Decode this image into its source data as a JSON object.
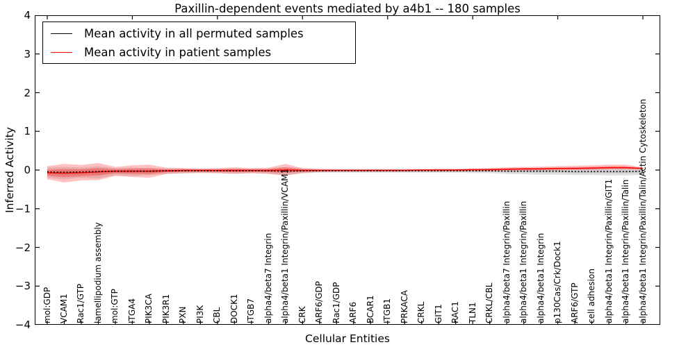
{
  "title": "Paxillin-dependent events mediated by a4b1 -- 180 samples",
  "legend": {
    "position": "upper left",
    "entries": [
      {
        "label": "Mean activity in all permuted samples",
        "color": "#000000"
      },
      {
        "label": "Mean activity in patient samples",
        "color": "#ff0000"
      }
    ]
  },
  "chart_data": {
    "type": "line",
    "title": "Paxillin-dependent events mediated by a4b1 -- 180 samples",
    "xlabel": "Cellular Entities",
    "ylabel": "Inferred Activity",
    "ylim": [
      -4,
      4
    ],
    "yticks": [
      "4",
      "3",
      "2",
      "1",
      "0",
      "−1",
      "−2",
      "−3",
      "−4"
    ],
    "ytick_values": [
      4,
      3,
      2,
      1,
      0,
      -1,
      -2,
      -3,
      -4
    ],
    "grid": false,
    "legend_position": "upper left",
    "categories": [
      "mol:GDP",
      "VCAM1",
      "Rac1/GTP",
      "lamellipodium assembly",
      "mol:GTP",
      "ITGA4",
      "PIK3CA",
      "PIK3R1",
      "PXN",
      "PI3K",
      "CBL",
      "DOCK1",
      "ITGB7",
      "alpha4/beta7 Integrin",
      "alpha4/beta1 Integrin/Paxillin/VCAM1",
      "CRK",
      "ARF6/GDP",
      "Rac1/GDP",
      "ARF6",
      "BCAR1",
      "ITGB1",
      "PRKACA",
      "CRKL",
      "GIT1",
      "RAC1",
      "TLN1",
      "CRKL/CBL",
      "alpha4/beta7 Integrin/Paxillin",
      "alpha4/beta1 Integrin/Paxillin",
      "alpha4/beta1 Integrin",
      "p130Cas/Crk/Dock1",
      "ARF6/GTP",
      "cell adhesion",
      "alpha4/beta1 Integrin/Paxillin/GIT1",
      "alpha4/beta1 Integrin/Paxillin/Talin",
      "alpha4/beta1 Integrin/Paxillin/Talin/Actin Cytoskeleton"
    ],
    "series": [
      {
        "name": "Mean activity in all permuted samples",
        "color": "#000000",
        "line_style": "dotted",
        "band_color": "#9e9e9e",
        "values": [
          -0.05,
          -0.06,
          -0.05,
          -0.04,
          -0.03,
          -0.03,
          -0.03,
          -0.02,
          -0.02,
          -0.02,
          -0.02,
          -0.02,
          -0.02,
          -0.02,
          -0.03,
          -0.02,
          -0.02,
          -0.02,
          -0.02,
          -0.02,
          -0.02,
          -0.02,
          -0.02,
          -0.02,
          -0.02,
          -0.02,
          -0.02,
          -0.03,
          -0.03,
          -0.03,
          -0.03,
          -0.04,
          -0.04,
          -0.04,
          -0.04,
          -0.03
        ],
        "band_upper": [
          0.06,
          0.08,
          0.06,
          0.1,
          0.05,
          0.06,
          0.05,
          0.04,
          0.04,
          0.03,
          0.03,
          0.04,
          0.03,
          0.04,
          0.08,
          0.04,
          0.03,
          0.03,
          0.03,
          0.03,
          0.03,
          0.03,
          0.03,
          0.03,
          0.03,
          0.03,
          0.04,
          0.04,
          0.05,
          0.05,
          0.05,
          0.06,
          0.06,
          0.06,
          0.06,
          0.05
        ],
        "band_lower": [
          -0.2,
          -0.24,
          -0.2,
          -0.22,
          -0.13,
          -0.15,
          -0.13,
          -0.1,
          -0.09,
          -0.08,
          -0.08,
          -0.09,
          -0.08,
          -0.09,
          -0.14,
          -0.08,
          -0.07,
          -0.07,
          -0.07,
          -0.07,
          -0.07,
          -0.07,
          -0.07,
          -0.07,
          -0.07,
          -0.08,
          -0.08,
          -0.1,
          -0.11,
          -0.12,
          -0.12,
          -0.13,
          -0.13,
          -0.14,
          -0.14,
          -0.12
        ]
      },
      {
        "name": "Mean activity in patient samples",
        "color": "#ff0000",
        "line_style": "solid",
        "band_color": "#ff3333",
        "values": [
          -0.07,
          -0.08,
          -0.07,
          -0.05,
          -0.03,
          -0.03,
          -0.03,
          -0.02,
          -0.01,
          -0.01,
          -0.01,
          -0.01,
          -0.01,
          -0.01,
          0.0,
          -0.01,
          -0.01,
          -0.01,
          -0.01,
          -0.01,
          -0.01,
          -0.01,
          0.0,
          0.0,
          0.0,
          0.01,
          0.01,
          0.02,
          0.03,
          0.03,
          0.04,
          0.04,
          0.05,
          0.06,
          0.06,
          0.04
        ],
        "band_upper": [
          0.1,
          0.16,
          0.13,
          0.18,
          0.08,
          0.12,
          0.14,
          0.06,
          0.05,
          0.04,
          0.05,
          0.07,
          0.05,
          0.06,
          0.16,
          0.05,
          0.03,
          0.02,
          0.02,
          0.02,
          0.02,
          0.02,
          0.02,
          0.03,
          0.03,
          0.04,
          0.05,
          0.07,
          0.08,
          0.09,
          0.1,
          0.11,
          0.12,
          0.14,
          0.14,
          0.07
        ],
        "band_lower": [
          -0.24,
          -0.32,
          -0.27,
          -0.26,
          -0.15,
          -0.18,
          -0.2,
          -0.1,
          -0.08,
          -0.07,
          -0.08,
          -0.1,
          -0.08,
          -0.1,
          -0.14,
          -0.08,
          -0.05,
          -0.04,
          -0.04,
          -0.04,
          -0.04,
          -0.04,
          -0.04,
          -0.04,
          -0.04,
          -0.03,
          -0.03,
          -0.02,
          -0.02,
          -0.01,
          -0.01,
          0.0,
          0.0,
          0.01,
          0.01,
          0.01
        ]
      }
    ]
  }
}
